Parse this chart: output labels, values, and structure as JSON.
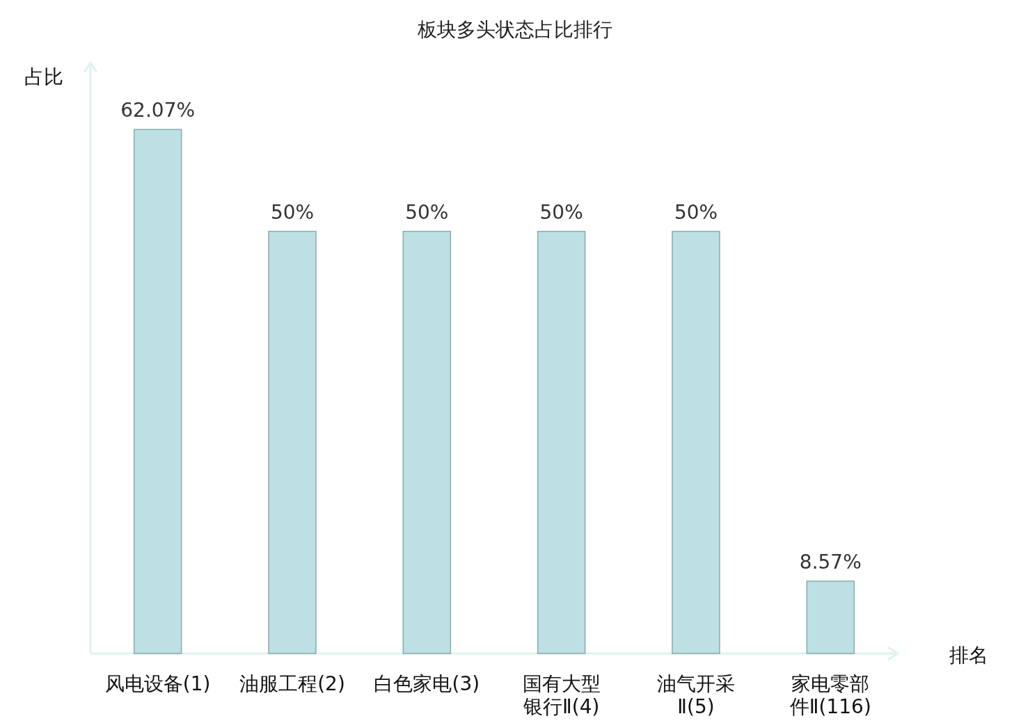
{
  "chart_data": {
    "type": "bar",
    "title": "板块多头状态占比排行",
    "xlabel": "排名",
    "ylabel": "占比",
    "categories": [
      "风电设备(1)",
      "油服工程(2)",
      "白色家电(3)",
      "国有大型银行Ⅱ(4)",
      "油气开采Ⅱ(5)",
      "家电零部件Ⅱ(116)"
    ],
    "values": [
      62.07,
      50,
      50,
      50,
      50,
      8.57
    ],
    "value_labels": [
      "62.07%",
      "50%",
      "50%",
      "50%",
      "50%",
      "8.57%"
    ],
    "color": "#bce0e3",
    "ylim": [
      0,
      70
    ]
  }
}
